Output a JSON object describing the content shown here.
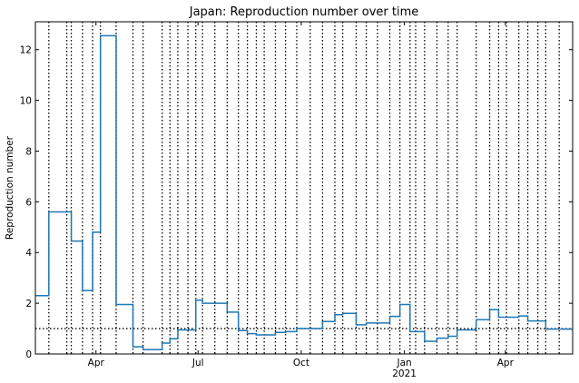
{
  "chart_data": {
    "type": "line",
    "title": "Japan: Reproduction number over time",
    "xlabel": "",
    "ylabel": "Reproduction number",
    "xlim": [
      "2020-02-07",
      "2021-05-31"
    ],
    "ylim": [
      0,
      13.1
    ],
    "grid": false,
    "legend": "none",
    "colors": {
      "series": "#1f77b4",
      "reference": "#000000",
      "breakpoints": "#000000"
    },
    "xticks": [
      {
        "date": "2020-04-01",
        "label": "Apr",
        "sublabel": ""
      },
      {
        "date": "2020-07-01",
        "label": "Jul",
        "sublabel": ""
      },
      {
        "date": "2020-10-01",
        "label": "Oct",
        "sublabel": ""
      },
      {
        "date": "2021-01-01",
        "label": "Jan",
        "sublabel": "2021"
      },
      {
        "date": "2021-04-01",
        "label": "Apr",
        "sublabel": ""
      }
    ],
    "yticks": [
      0,
      2,
      4,
      6,
      8,
      10,
      12
    ],
    "reference_line": 1.0,
    "series": [
      {
        "x": [
          "2020-02-07",
          "2020-02-19",
          "2020-03-06",
          "2020-03-10",
          "2020-03-20",
          "2020-03-29",
          "2020-04-05",
          "2020-04-19",
          "2020-05-04",
          "2020-05-13",
          "2020-05-30",
          "2020-06-06",
          "2020-06-13",
          "2020-06-22",
          "2020-06-29",
          "2020-07-05",
          "2020-07-16",
          "2020-07-27",
          "2020-08-06",
          "2020-08-14",
          "2020-08-22",
          "2020-08-29",
          "2020-09-08",
          "2020-09-17",
          "2020-09-27",
          "2020-10-09",
          "2020-10-20",
          "2020-10-31",
          "2020-11-07",
          "2020-11-19",
          "2020-11-28",
          "2020-12-08",
          "2020-12-19",
          "2020-12-28",
          "2021-01-06",
          "2021-01-11",
          "2021-01-19",
          "2021-01-30",
          "2021-02-09",
          "2021-02-17",
          "2021-03-06",
          "2021-03-18",
          "2021-03-26",
          "2021-04-02",
          "2021-04-13",
          "2021-04-21",
          "2021-04-30",
          "2021-05-07",
          "2021-05-19"
        ],
        "values": [
          2.3,
          5.6,
          5.6,
          4.45,
          2.5,
          4.8,
          12.55,
          1.95,
          0.28,
          0.17,
          0.43,
          0.6,
          0.95,
          0.95,
          2.12,
          2.0,
          2.0,
          1.65,
          0.92,
          0.8,
          0.75,
          0.75,
          0.85,
          0.88,
          1.0,
          1.0,
          1.28,
          1.55,
          1.6,
          1.15,
          1.22,
          1.22,
          1.48,
          1.95,
          0.88,
          0.88,
          0.5,
          0.62,
          0.7,
          0.95,
          1.35,
          1.75,
          1.45,
          1.45,
          1.5,
          1.3,
          1.3,
          0.98,
          0.98
        ]
      }
    ]
  }
}
